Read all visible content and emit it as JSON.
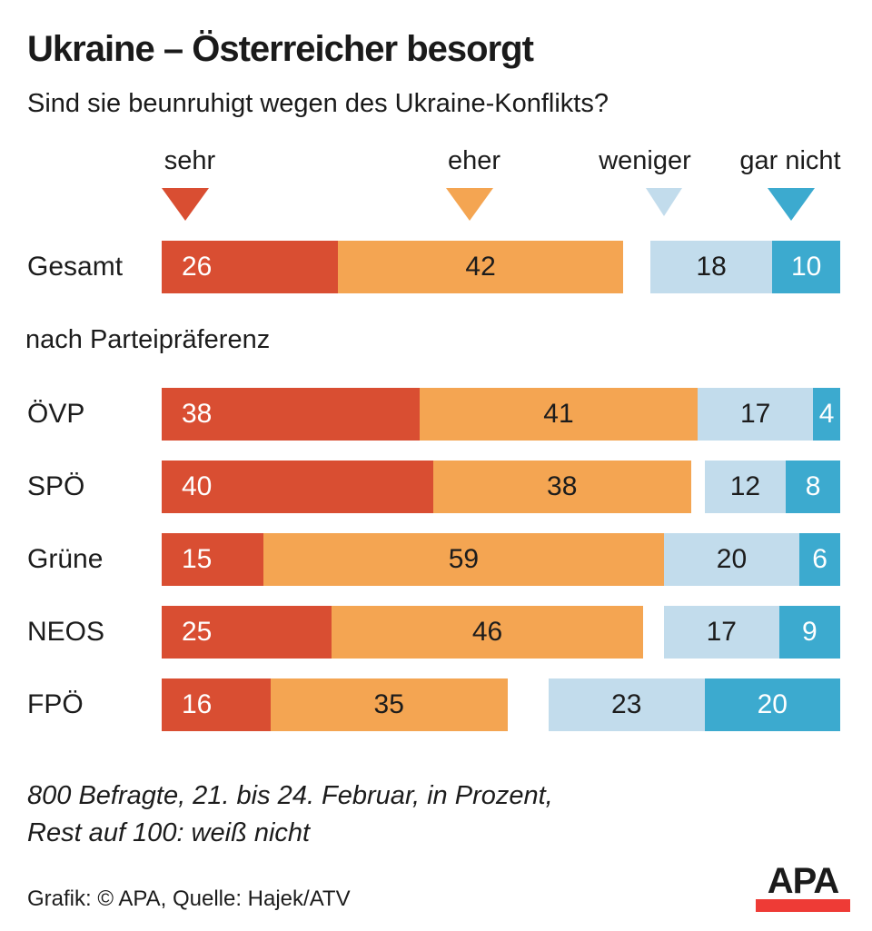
{
  "title": "Ukraine – Österreicher besorgt",
  "subtitle": "Sind sie beunruhigt wegen des Ukraine-Konflikts?",
  "section_label": "nach Parteipräferenz",
  "legend": [
    {
      "label": "sehr",
      "color": "#d94e32"
    },
    {
      "label": "eher",
      "color": "#f4a552"
    },
    {
      "label": "weniger",
      "color": "#c2dcec"
    },
    {
      "label": "gar nicht",
      "color": "#3caacf"
    }
  ],
  "chart_data": {
    "type": "bar",
    "orientation": "horizontal",
    "stacked": true,
    "unit": "percent",
    "axis_max": 100,
    "series_labels": [
      "sehr",
      "eher",
      "weniger",
      "gar nicht"
    ],
    "colors": [
      "#d94e32",
      "#f4a552",
      "#c2dcec",
      "#3caacf"
    ],
    "value_text_colors": [
      "#ffffff",
      "#1c1c1c",
      "#1c1c1c",
      "#ffffff"
    ],
    "categories": [
      "Gesamt",
      "ÖVP",
      "SPÖ",
      "Grüne",
      "NEOS",
      "FPÖ"
    ],
    "rows": [
      {
        "label": "Gesamt",
        "values": [
          26,
          42,
          18,
          10
        ]
      },
      {
        "label": "ÖVP",
        "values": [
          38,
          41,
          17,
          4
        ]
      },
      {
        "label": "SPÖ",
        "values": [
          40,
          38,
          12,
          8
        ]
      },
      {
        "label": "Grüne",
        "values": [
          15,
          59,
          20,
          6
        ]
      },
      {
        "label": "NEOS",
        "values": [
          25,
          46,
          17,
          9
        ]
      },
      {
        "label": "FPÖ",
        "values": [
          16,
          35,
          23,
          20
        ]
      }
    ],
    "layout_note": "sehr+eher left-aligned, weniger+gar nicht right-aligned; middle gap = weiß nicht",
    "gap_meaning": "Rest auf 100: weiß nicht"
  },
  "footnote": {
    "line1": "800 Befragte, 21. bis 24. Februar, in Prozent,",
    "line2": "Rest auf 100: weiß nicht"
  },
  "credit": "Grafik: © APA, Quelle: Hajek/ATV",
  "logo": {
    "text": "APA",
    "bar_color": "#ee3b36"
  }
}
